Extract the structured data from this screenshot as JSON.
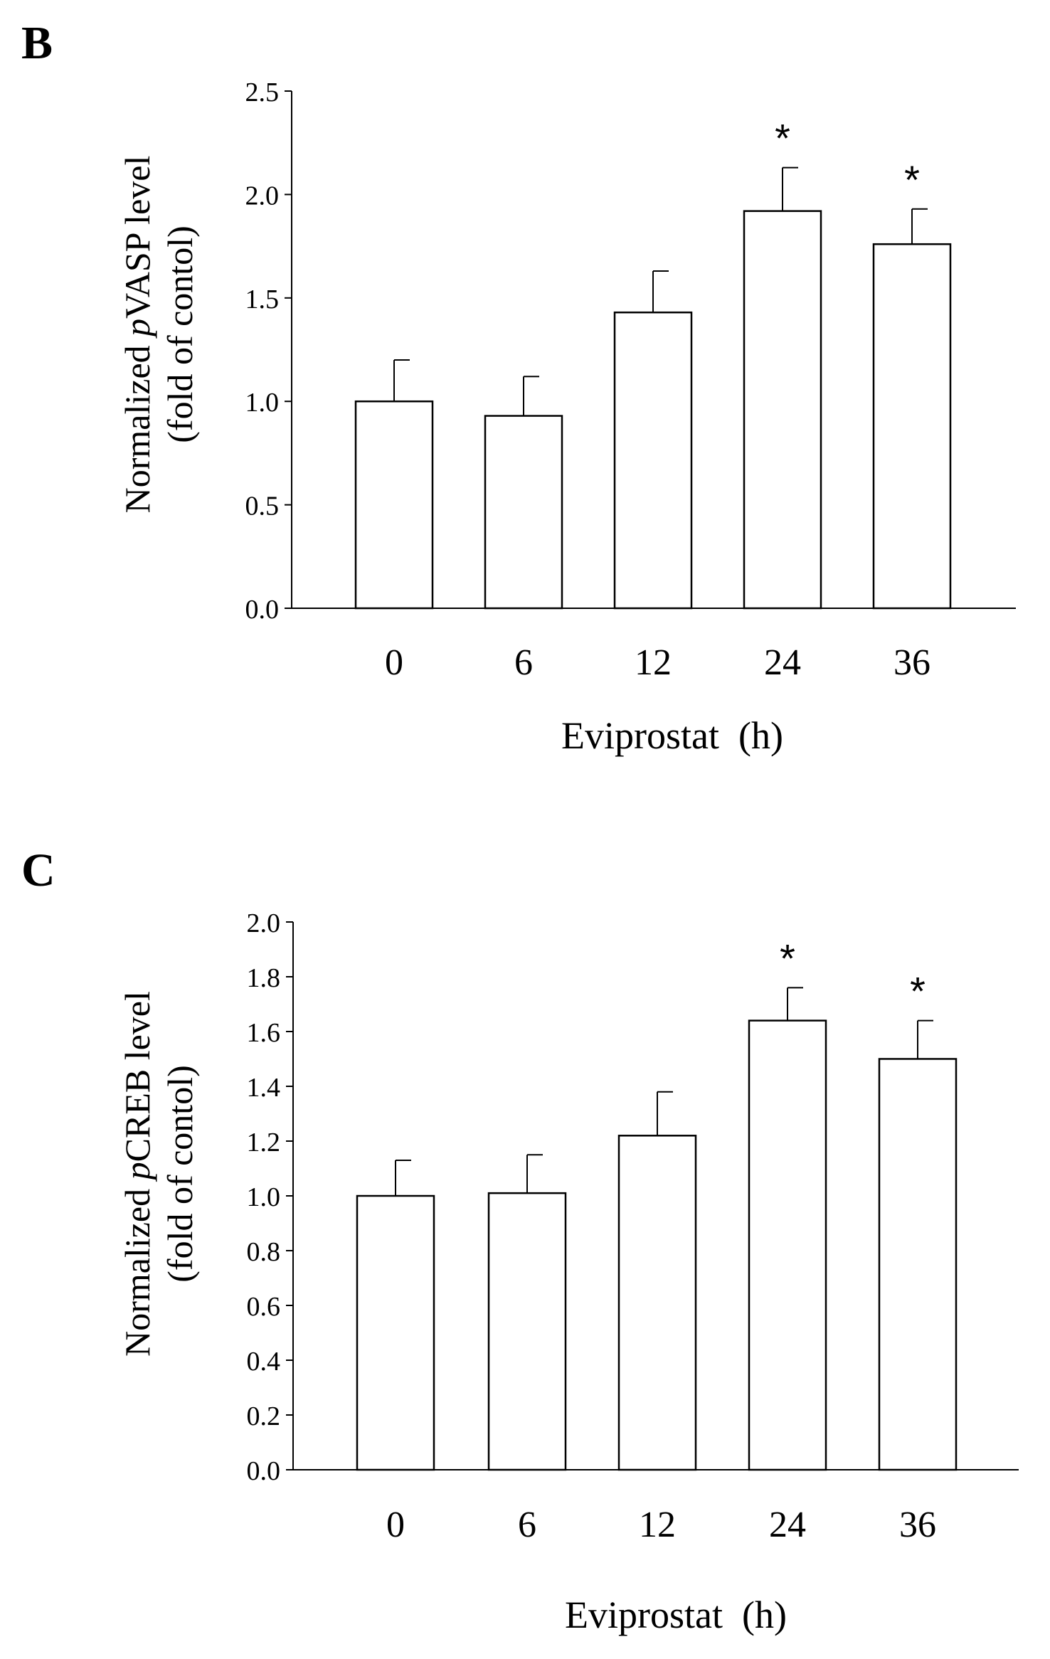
{
  "figure": {
    "panels": [
      "B",
      "C"
    ]
  },
  "chart_data": [
    {
      "type": "bar",
      "panel": "B",
      "title": "",
      "categories": [
        "0",
        "6",
        "12",
        "24",
        "36"
      ],
      "values": [
        1.0,
        0.93,
        1.43,
        1.92,
        1.76
      ],
      "errors": [
        0.2,
        0.19,
        0.2,
        0.21,
        0.17
      ],
      "significance": [
        "",
        "",
        "",
        "*",
        "*"
      ],
      "xlabel": "Eviprostat  (h)",
      "ylabel_line1_prefix": "Normalized ",
      "ylabel_line1_italic": "p",
      "ylabel_line1_suffix": "VASP level",
      "ylabel_line2": "(fold of contol)",
      "ylim": [
        0,
        2.5
      ],
      "yticks": [
        "0.0",
        "0.5",
        "1.0",
        "1.5",
        "2.0",
        "2.5"
      ],
      "grid": false,
      "colors": {
        "bar_fill": "#ffffff",
        "bar_stroke": "#000000",
        "axis": "#000000"
      }
    },
    {
      "type": "bar",
      "panel": "C",
      "title": "",
      "categories": [
        "0",
        "6",
        "12",
        "24",
        "36"
      ],
      "values": [
        1.0,
        1.01,
        1.22,
        1.64,
        1.5
      ],
      "errors": [
        0.13,
        0.14,
        0.16,
        0.12,
        0.14
      ],
      "significance": [
        "",
        "",
        "",
        "*",
        "*"
      ],
      "xlabel": "Eviprostat  (h)",
      "ylabel_line1_prefix": "Normalized ",
      "ylabel_line1_italic": "p",
      "ylabel_line1_suffix": "CREB level",
      "ylabel_line2": "(fold of contol)",
      "ylim": [
        0,
        2.0
      ],
      "yticks": [
        "0.0",
        "0.2",
        "0.4",
        "0.6",
        "0.8",
        "1.0",
        "1.2",
        "1.4",
        "1.6",
        "1.8",
        "2.0"
      ],
      "grid": false,
      "colors": {
        "bar_fill": "#ffffff",
        "bar_stroke": "#000000",
        "axis": "#000000"
      }
    }
  ]
}
